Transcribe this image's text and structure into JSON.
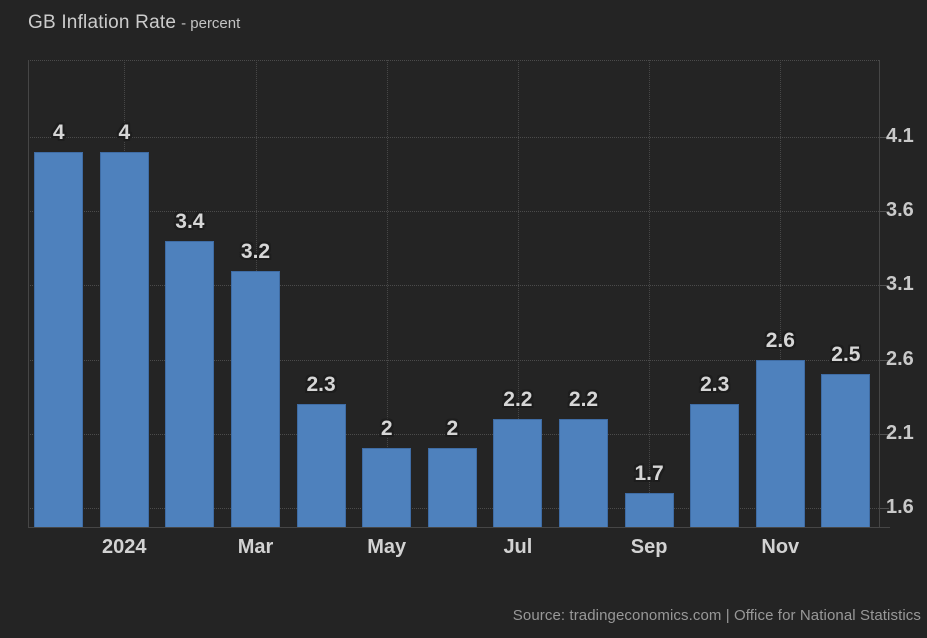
{
  "header": {
    "title": "GB Inflation Rate",
    "subtitle": "- percent"
  },
  "footer": {
    "source": "Source: tradingeconomics.com | Office for National Statistics"
  },
  "colors": {
    "background": "#242424",
    "bar": "#4e81bd",
    "bar_border": "#3f6ca4",
    "gridline": "#4b4b4b",
    "axis_line": "#464646",
    "value_label": "#d6d6d6",
    "y_tick_label": "#c9c9c9",
    "x_tick_label": "#d2d2d2",
    "title_text": "#cccccc",
    "source_text": "#989898"
  },
  "chart_data": {
    "type": "bar",
    "title": "GB Inflation Rate",
    "subtitle": "- percent",
    "ylabel": "percent",
    "values": [
      4,
      4,
      3.4,
      3.2,
      2.3,
      2,
      2,
      2.2,
      2.2,
      1.7,
      2.3,
      2.6,
      2.5
    ],
    "value_labels": [
      "4",
      "4",
      "3.4",
      "3.2",
      "2.3",
      "2",
      "2",
      "2.2",
      "2.2",
      "1.7",
      "2.3",
      "2.6",
      "2.5"
    ],
    "x_tick_labels": [
      "2024",
      "Mar",
      "May",
      "Jul",
      "Sep",
      "Nov"
    ],
    "x_tick_bar_indices": [
      1,
      3,
      5,
      7,
      9,
      11
    ],
    "y_ticks": [
      4.1,
      3.6,
      3.1,
      2.6,
      2.1,
      1.6
    ],
    "ylim": [
      1.47,
      4.62
    ],
    "grid": true,
    "legend": false,
    "bar_color": "#4e81bd"
  }
}
